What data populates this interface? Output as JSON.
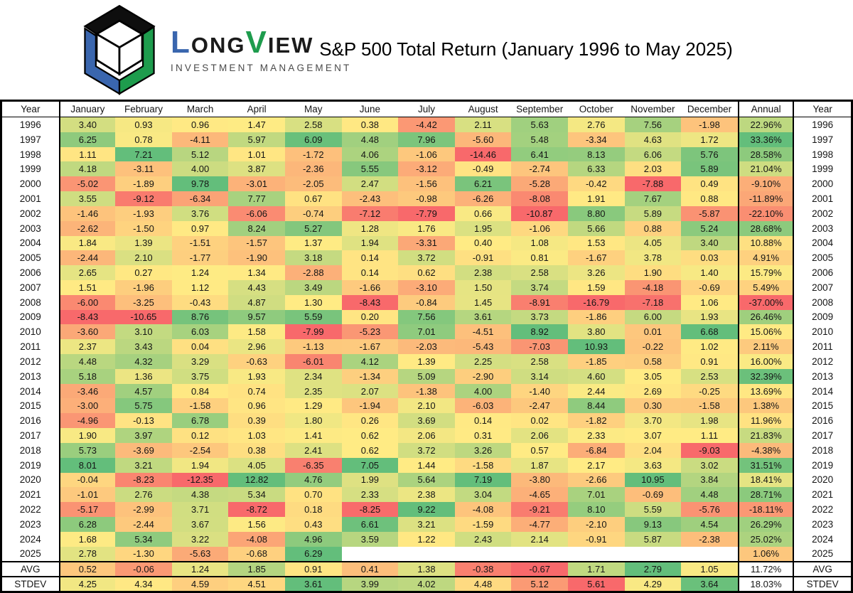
{
  "title": "S&P 500 Total Return (January 1996 to May 2025)",
  "brand": {
    "l": "L",
    "ong": "ONG",
    "v": "V",
    "iew": "IEW",
    "subtitle": "INVESTMENT MANAGEMENT"
  },
  "colors": {
    "logo_blue": "#3A66AE",
    "logo_green": "#1E9C4D",
    "logo_black": "#0e0e0e",
    "scale_low": "#F8696B",
    "scale_mid": "#FFEB84",
    "scale_high": "#63BE7B"
  },
  "chart_data": {
    "type": "heatmap",
    "title": "S&P 500 Total Return (January 1996 to May 2025)",
    "unit": "percent",
    "legend_position": "none",
    "color_scale_note": "Excel 3-color scale red-yellow-green, midpoint = median; monthly columns scaled per column, AVG row scaled per row, STDEV row reversed (low=green)",
    "columns": [
      "Year",
      "January",
      "February",
      "March",
      "April",
      "May",
      "June",
      "July",
      "August",
      "September",
      "October",
      "November",
      "December",
      "Annual",
      "Year"
    ],
    "rows": [
      {
        "year": "1996",
        "months": [
          3.4,
          0.93,
          0.96,
          1.47,
          2.58,
          0.38,
          -4.42,
          2.11,
          5.63,
          2.76,
          7.56,
          -1.98
        ],
        "annual": "22.96%"
      },
      {
        "year": "1997",
        "months": [
          6.25,
          0.78,
          -4.11,
          5.97,
          6.09,
          4.48,
          7.96,
          -5.6,
          5.48,
          -3.34,
          4.63,
          1.72
        ],
        "annual": "33.36%"
      },
      {
        "year": "1998",
        "months": [
          1.11,
          7.21,
          5.12,
          1.01,
          -1.72,
          4.06,
          -1.06,
          -14.46,
          6.41,
          8.13,
          6.06,
          5.76
        ],
        "annual": "28.58%"
      },
      {
        "year": "1999",
        "months": [
          4.18,
          -3.11,
          4.0,
          3.87,
          -2.36,
          5.55,
          -3.12,
          -0.49,
          -2.74,
          6.33,
          2.03,
          5.89
        ],
        "annual": "21.04%"
      },
      {
        "year": "2000",
        "months": [
          -5.02,
          -1.89,
          9.78,
          -3.01,
          -2.05,
          2.47,
          -1.56,
          6.21,
          -5.28,
          -0.42,
          -7.88,
          0.49
        ],
        "annual": "-9.10%"
      },
      {
        "year": "2001",
        "months": [
          3.55,
          -9.12,
          -6.34,
          7.77,
          0.67,
          -2.43,
          -0.98,
          -6.26,
          -8.08,
          1.91,
          7.67,
          0.88
        ],
        "annual": "-11.89%"
      },
      {
        "year": "2002",
        "months": [
          -1.46,
          -1.93,
          3.76,
          -6.06,
          -0.74,
          -7.12,
          -7.79,
          0.66,
          -10.87,
          8.8,
          5.89,
          -5.87
        ],
        "annual": "-22.10%"
      },
      {
        "year": "2003",
        "months": [
          -2.62,
          -1.5,
          0.97,
          8.24,
          5.27,
          1.28,
          1.76,
          1.95,
          -1.06,
          5.66,
          0.88,
          5.24
        ],
        "annual": "28.68%"
      },
      {
        "year": "2004",
        "months": [
          1.84,
          1.39,
          -1.51,
          -1.57,
          1.37,
          1.94,
          -3.31,
          0.4,
          1.08,
          1.53,
          4.05,
          3.4
        ],
        "annual": "10.88%"
      },
      {
        "year": "2005",
        "months": [
          -2.44,
          2.1,
          -1.77,
          -1.9,
          3.18,
          0.14,
          3.72,
          -0.91,
          0.81,
          -1.67,
          3.78,
          0.03
        ],
        "annual": "4.91%"
      },
      {
        "year": "2006",
        "months": [
          2.65,
          0.27,
          1.24,
          1.34,
          -2.88,
          0.14,
          0.62,
          2.38,
          2.58,
          3.26,
          1.9,
          1.4
        ],
        "annual": "15.79%"
      },
      {
        "year": "2007",
        "months": [
          1.51,
          -1.96,
          1.12,
          4.43,
          3.49,
          -1.66,
          -3.1,
          1.5,
          3.74,
          1.59,
          -4.18,
          -0.69
        ],
        "annual": "5.49%"
      },
      {
        "year": "2008",
        "months": [
          -6.0,
          -3.25,
          -0.43,
          4.87,
          1.3,
          -8.43,
          -0.84,
          1.45,
          -8.91,
          -16.79,
          -7.18,
          1.06
        ],
        "annual": "-37.00%"
      },
      {
        "year": "2009",
        "months": [
          -8.43,
          -10.65,
          8.76,
          9.57,
          5.59,
          0.2,
          7.56,
          3.61,
          3.73,
          -1.86,
          6.0,
          1.93
        ],
        "annual": "26.46%"
      },
      {
        "year": "2010",
        "months": [
          -3.6,
          3.1,
          6.03,
          1.58,
          -7.99,
          -5.23,
          7.01,
          -4.51,
          8.92,
          3.8,
          0.01,
          6.68
        ],
        "annual": "15.06%"
      },
      {
        "year": "2011",
        "months": [
          2.37,
          3.43,
          0.04,
          2.96,
          -1.13,
          -1.67,
          -2.03,
          -5.43,
          -7.03,
          10.93,
          -0.22,
          1.02
        ],
        "annual": "2.11%"
      },
      {
        "year": "2012",
        "months": [
          4.48,
          4.32,
          3.29,
          -0.63,
          -6.01,
          4.12,
          1.39,
          2.25,
          2.58,
          -1.85,
          0.58,
          0.91
        ],
        "annual": "16.00%"
      },
      {
        "year": "2013",
        "months": [
          5.18,
          1.36,
          3.75,
          1.93,
          2.34,
          -1.34,
          5.09,
          -2.9,
          3.14,
          4.6,
          3.05,
          2.53
        ],
        "annual": "32.39%"
      },
      {
        "year": "2014",
        "months": [
          -3.46,
          4.57,
          0.84,
          0.74,
          2.35,
          2.07,
          -1.38,
          4.0,
          -1.4,
          2.44,
          2.69,
          -0.25
        ],
        "annual": "13.69%"
      },
      {
        "year": "2015",
        "months": [
          -3.0,
          5.75,
          -1.58,
          0.96,
          1.29,
          -1.94,
          2.1,
          -6.03,
          -2.47,
          8.44,
          0.3,
          -1.58
        ],
        "annual": "1.38%"
      },
      {
        "year": "2016",
        "months": [
          -4.96,
          -0.13,
          6.78,
          0.39,
          1.8,
          0.26,
          3.69,
          0.14,
          0.02,
          -1.82,
          3.7,
          1.98
        ],
        "annual": "11.96%"
      },
      {
        "year": "2017",
        "months": [
          1.9,
          3.97,
          0.12,
          1.03,
          1.41,
          0.62,
          2.06,
          0.31,
          2.06,
          2.33,
          3.07,
          1.11
        ],
        "annual": "21.83%"
      },
      {
        "year": "2018",
        "months": [
          5.73,
          -3.69,
          -2.54,
          0.38,
          2.41,
          0.62,
          3.72,
          3.26,
          0.57,
          -6.84,
          2.04,
          -9.03
        ],
        "annual": "-4.38%"
      },
      {
        "year": "2019",
        "months": [
          8.01,
          3.21,
          1.94,
          4.05,
          -6.35,
          7.05,
          1.44,
          -1.58,
          1.87,
          2.17,
          3.63,
          3.02
        ],
        "annual": "31.51%"
      },
      {
        "year": "2020",
        "months": [
          -0.04,
          -8.23,
          -12.35,
          12.82,
          4.76,
          1.99,
          5.64,
          7.19,
          -3.8,
          -2.66,
          10.95,
          3.84
        ],
        "annual": "18.41%"
      },
      {
        "year": "2021",
        "months": [
          -1.01,
          2.76,
          4.38,
          5.34,
          0.7,
          2.33,
          2.38,
          3.04,
          -4.65,
          7.01,
          -0.69,
          4.48
        ],
        "annual": "28.71%"
      },
      {
        "year": "2022",
        "months": [
          -5.17,
          -2.99,
          3.71,
          -8.72,
          0.18,
          -8.25,
          9.22,
          -4.08,
          -9.21,
          8.1,
          5.59,
          -5.76
        ],
        "annual": "-18.11%"
      },
      {
        "year": "2023",
        "months": [
          6.28,
          -2.44,
          3.67,
          1.56,
          0.43,
          6.61,
          3.21,
          -1.59,
          -4.77,
          -2.1,
          9.13,
          4.54
        ],
        "annual": "26.29%"
      },
      {
        "year": "2024",
        "months": [
          1.68,
          5.34,
          3.22,
          -4.08,
          4.96,
          3.59,
          1.22,
          2.43,
          2.14,
          -0.91,
          5.87,
          -2.38
        ],
        "annual": "25.02%"
      },
      {
        "year": "2025",
        "months": [
          2.78,
          -1.3,
          -5.63,
          -0.68,
          6.29,
          null,
          null,
          null,
          null,
          null,
          null,
          null
        ],
        "annual": "1.06%"
      }
    ],
    "summary_rows": [
      {
        "label": "AVG",
        "months": [
          0.52,
          -0.06,
          1.24,
          1.85,
          0.91,
          0.41,
          1.38,
          -0.38,
          -0.67,
          1.71,
          2.79,
          1.05
        ],
        "annual": "11.72%",
        "scale": "row"
      },
      {
        "label": "STDEV",
        "months": [
          4.25,
          4.34,
          4.59,
          4.51,
          3.61,
          3.99,
          4.02,
          4.48,
          5.12,
          5.61,
          4.29,
          3.64
        ],
        "annual": "18.03%",
        "scale": "row-reversed"
      }
    ]
  }
}
